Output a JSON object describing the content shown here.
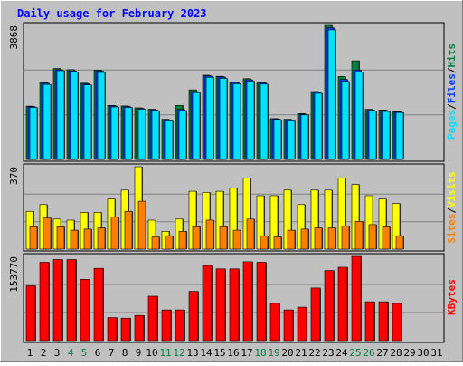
{
  "title": "Daily usage for February 2023",
  "colors": {
    "background": "#c0c0c0",
    "title": "#0000ff",
    "hits": "#008040",
    "files": "#0040ff",
    "pages": "#00e0ff",
    "visits": "#ffff00",
    "sites": "#ff8000",
    "kbytes": "#ff0000",
    "weekend_day": "#008040",
    "weekday": "#000000"
  },
  "chart_data": [
    {
      "type": "bar",
      "panel": "hits-files-pages",
      "y_max_label": "3868",
      "ylim": [
        0,
        3868
      ],
      "legend": [
        {
          "label": "Pages",
          "color": "#00e0ff"
        },
        {
          "label": "/",
          "color": "#000000"
        },
        {
          "label": "Files",
          "color": "#0040ff"
        },
        {
          "label": "/",
          "color": "#000000"
        },
        {
          "label": "Hits",
          "color": "#008040"
        }
      ],
      "categories": [
        "1",
        "2",
        "3",
        "4",
        "5",
        "6",
        "7",
        "8",
        "9",
        "10",
        "11",
        "12",
        "13",
        "14",
        "15",
        "16",
        "17",
        "18",
        "19",
        "20",
        "21",
        "22",
        "23",
        "24",
        "25",
        "26",
        "27",
        "28",
        "29",
        "30",
        "31"
      ],
      "series": [
        {
          "name": "Hits",
          "values": [
            1540,
            2225,
            2625,
            2590,
            2200,
            2580,
            1560,
            1545,
            1490,
            1450,
            1160,
            1560,
            2010,
            2430,
            2400,
            2240,
            2330,
            2240,
            1180,
            1160,
            1325,
            1960,
            3868,
            2395,
            2845,
            1445,
            1430,
            1385,
            0,
            0,
            0
          ]
        },
        {
          "name": "Files",
          "values": [
            1520,
            2200,
            2590,
            2555,
            2180,
            2550,
            1545,
            1530,
            1475,
            1430,
            1140,
            1445,
            1960,
            2410,
            2380,
            2220,
            2300,
            2210,
            1170,
            1140,
            1305,
            1940,
            3800,
            2310,
            2580,
            1425,
            1410,
            1370,
            0,
            0,
            0
          ]
        },
        {
          "name": "Pages",
          "values": [
            1500,
            2165,
            2560,
            2520,
            2150,
            2510,
            1515,
            1500,
            1450,
            1405,
            1110,
            1410,
            1930,
            2370,
            2340,
            2185,
            2260,
            2175,
            1150,
            1110,
            1285,
            1910,
            3740,
            2250,
            2520,
            1395,
            1385,
            1355,
            0,
            0,
            0
          ]
        }
      ]
    },
    {
      "type": "bar",
      "panel": "visits-sites",
      "y_max_label": "370",
      "ylim": [
        0,
        370
      ],
      "legend": [
        {
          "label": "Sites",
          "color": "#ff8000"
        },
        {
          "label": "/",
          "color": "#000000"
        },
        {
          "label": "Visits",
          "color": "#ffff00"
        }
      ],
      "categories": [
        "1",
        "2",
        "3",
        "4",
        "5",
        "6",
        "7",
        "8",
        "9",
        "10",
        "11",
        "12",
        "13",
        "14",
        "15",
        "16",
        "17",
        "18",
        "19",
        "20",
        "21",
        "22",
        "23",
        "24",
        "25",
        "26",
        "27",
        "28",
        "29",
        "30",
        "31"
      ],
      "series": [
        {
          "name": "Visits",
          "values": [
            170,
            200,
            135,
            130,
            165,
            165,
            225,
            265,
            370,
            130,
            80,
            135,
            260,
            255,
            260,
            275,
            320,
            240,
            240,
            265,
            200,
            265,
            265,
            320,
            290,
            240,
            225,
            205,
            0,
            0,
            0
          ]
        },
        {
          "name": "Sites",
          "values": [
            100,
            140,
            100,
            85,
            90,
            95,
            145,
            170,
            215,
            55,
            60,
            80,
            100,
            130,
            100,
            85,
            135,
            60,
            55,
            85,
            90,
            95,
            95,
            105,
            125,
            110,
            100,
            60,
            0,
            0,
            0
          ]
        }
      ]
    },
    {
      "type": "bar",
      "panel": "kbytes",
      "y_max_label": "153770",
      "ylim": [
        0,
        153770
      ],
      "legend": [
        {
          "label": "KBytes",
          "color": "#ff0000"
        }
      ],
      "categories": [
        "1",
        "2",
        "3",
        "4",
        "5",
        "6",
        "7",
        "8",
        "9",
        "10",
        "11",
        "12",
        "13",
        "14",
        "15",
        "16",
        "17",
        "18",
        "19",
        "20",
        "21",
        "22",
        "23",
        "24",
        "25",
        "26",
        "27",
        "28",
        "29",
        "30",
        "31"
      ],
      "series": [
        {
          "name": "KBytes",
          "values": [
            100000,
            143000,
            148000,
            148000,
            112000,
            132000,
            42000,
            41000,
            46000,
            81000,
            56000,
            56000,
            90000,
            137000,
            131000,
            131000,
            144000,
            143000,
            68000,
            56000,
            61000,
            96000,
            128000,
            134000,
            153770,
            71000,
            71000,
            68000,
            0,
            0,
            0
          ]
        }
      ]
    }
  ],
  "x_axis": {
    "labels": [
      "1",
      "2",
      "3",
      "4",
      "5",
      "6",
      "7",
      "8",
      "9",
      "10",
      "11",
      "12",
      "13",
      "14",
      "15",
      "16",
      "17",
      "18",
      "19",
      "20",
      "21",
      "22",
      "23",
      "24",
      "25",
      "26",
      "27",
      "28",
      "29",
      "30",
      "31"
    ],
    "weekend": [
      false,
      false,
      false,
      true,
      true,
      false,
      false,
      false,
      false,
      false,
      true,
      true,
      false,
      false,
      false,
      false,
      false,
      true,
      true,
      false,
      false,
      false,
      false,
      false,
      true,
      true,
      false,
      false,
      false,
      false,
      false
    ]
  }
}
